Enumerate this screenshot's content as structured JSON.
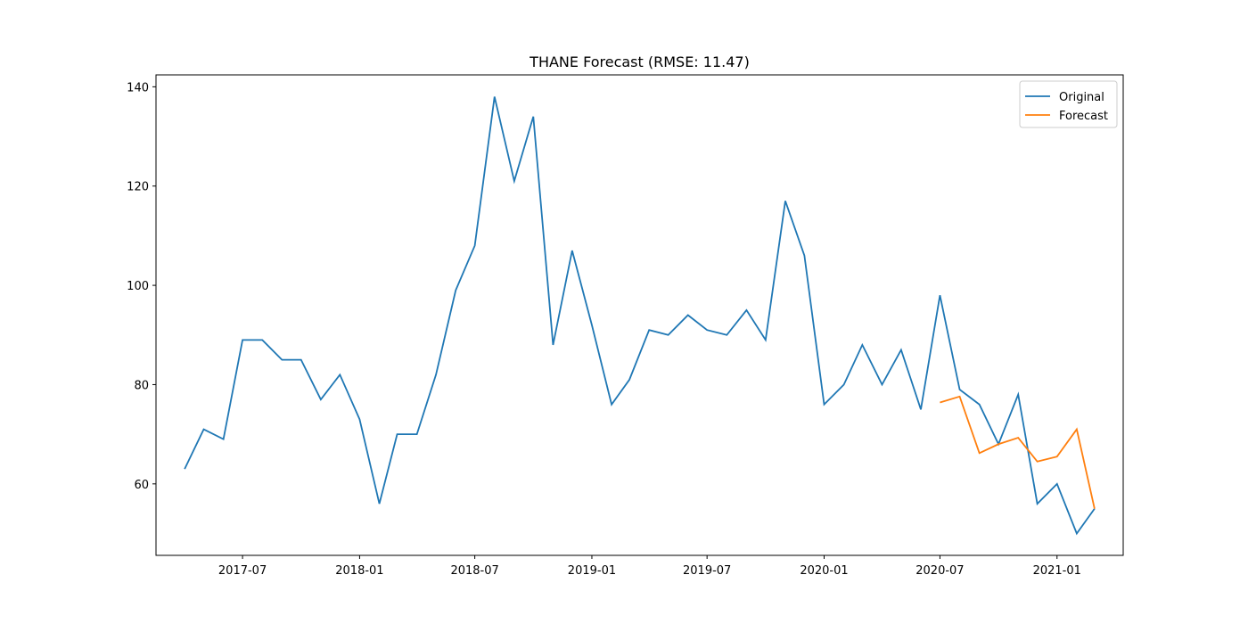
{
  "chart_data": {
    "type": "line",
    "title": "THANE Forecast (RMSE: 11.47)",
    "xlabel": "",
    "ylabel": "",
    "xlim": [
      "2017-02-15",
      "2021-04-15"
    ],
    "ylim": [
      45.6,
      142.4
    ],
    "x_ticks": [
      "2017-07",
      "2018-01",
      "2018-07",
      "2019-01",
      "2019-07",
      "2020-01",
      "2020-07",
      "2021-01"
    ],
    "y_ticks": [
      60,
      80,
      100,
      120,
      140
    ],
    "grid": false,
    "legend_position": "top-right",
    "series": [
      {
        "name": "Original",
        "color": "#1f77b4",
        "x": [
          "2017-04",
          "2017-05",
          "2017-06",
          "2017-07",
          "2017-08",
          "2017-09",
          "2017-10",
          "2017-11",
          "2017-12",
          "2018-01",
          "2018-02",
          "2018-03",
          "2018-04",
          "2018-05",
          "2018-06",
          "2018-07",
          "2018-08",
          "2018-09",
          "2018-10",
          "2018-11",
          "2018-12",
          "2019-01",
          "2019-02",
          "2019-03",
          "2019-04",
          "2019-05",
          "2019-06",
          "2019-07",
          "2019-08",
          "2019-09",
          "2019-10",
          "2019-11",
          "2019-12",
          "2020-01",
          "2020-02",
          "2020-03",
          "2020-04",
          "2020-05",
          "2020-06",
          "2020-07",
          "2020-08",
          "2020-09",
          "2020-10",
          "2020-11",
          "2020-12",
          "2021-01",
          "2021-02",
          "2021-03"
        ],
        "values": [
          63,
          71,
          69,
          89,
          89,
          85,
          85,
          77,
          82,
          73,
          56,
          70,
          70,
          82,
          99,
          108,
          138,
          121,
          134,
          88,
          107,
          92,
          76,
          81,
          91,
          90,
          94,
          91,
          90,
          95,
          89,
          117,
          106,
          76,
          80,
          88,
          80,
          87,
          75,
          98,
          79,
          76,
          68,
          78,
          56,
          60,
          50,
          55
        ]
      },
      {
        "name": "Forecast",
        "color": "#ff7f0e",
        "x": [
          "2020-07",
          "2020-08",
          "2020-09",
          "2020-10",
          "2020-11",
          "2020-12",
          "2021-01",
          "2021-02",
          "2021-03"
        ],
        "values": [
          76.4,
          77.6,
          66.2,
          68.0,
          69.3,
          64.5,
          65.5,
          71.0,
          55.0
        ]
      }
    ]
  }
}
